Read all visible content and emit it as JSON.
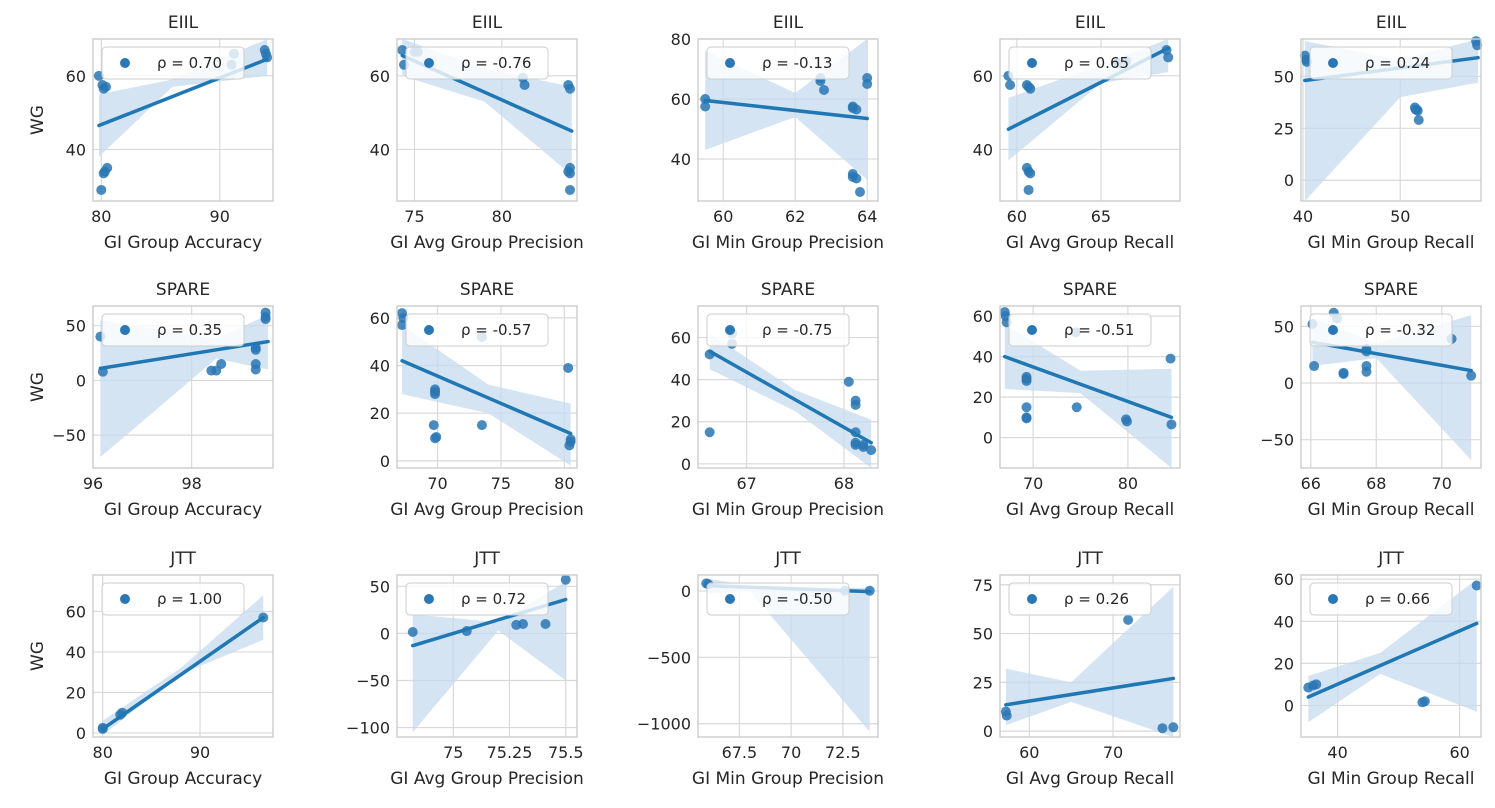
{
  "figure": {
    "ylabel": "WG",
    "colors": {
      "point": "#2a77b4",
      "line": "#1f77b4",
      "band": "#c6dbef",
      "grid": "#d9d9d9",
      "frame": "#cccccc"
    }
  },
  "chart_data": [
    {
      "type": "scatter",
      "title": "EIIL",
      "xlabel": "GI Group Accuracy",
      "ylabel": "WG",
      "rho": "ρ = 0.70",
      "xlim": [
        79.3,
        94.5
      ],
      "ylim": [
        26,
        70
      ],
      "xticks": [
        80,
        90
      ],
      "yticks": [
        40,
        60
      ],
      "x": [
        79.8,
        80.1,
        80.4,
        80.2,
        80.5,
        80.3,
        80.2,
        80.0,
        91.2,
        91.0,
        93.8,
        93.9,
        94.0
      ],
      "y": [
        60,
        57.5,
        57,
        56.5,
        35,
        34,
        33.5,
        29,
        66,
        63,
        67,
        66,
        65
      ],
      "fit": [
        [
          79.8,
          46.5
        ],
        [
          94,
          64.5
        ]
      ],
      "band_lo": [
        [
          79.8,
          38
        ],
        [
          86,
          57
        ],
        [
          94,
          60
        ]
      ],
      "band_hi": [
        [
          79.8,
          55
        ],
        [
          86,
          59
        ],
        [
          94,
          70
        ]
      ]
    },
    {
      "type": "scatter",
      "title": "EIIL",
      "xlabel": "GI Avg Group Precision",
      "ylabel": "",
      "rho": "ρ = -0.76",
      "xlim": [
        74,
        84.3
      ],
      "ylim": [
        26,
        70
      ],
      "xticks": [
        75,
        80
      ],
      "yticks": [
        40,
        60
      ],
      "x": [
        74.3,
        74.4,
        75.0,
        75.2,
        81.2,
        81.3,
        83.8,
        83.9,
        83.9,
        83.8,
        83.9,
        83.9
      ],
      "y": [
        67,
        63,
        66.5,
        66.5,
        59.5,
        57.5,
        57.5,
        56.5,
        35,
        34,
        33.5,
        29
      ],
      "fit": [
        [
          74.3,
          65.5
        ],
        [
          84,
          45
        ]
      ],
      "band_lo": [
        [
          74.3,
          60
        ],
        [
          79,
          53
        ],
        [
          84,
          33
        ]
      ],
      "band_hi": [
        [
          74.3,
          70
        ],
        [
          79,
          62
        ],
        [
          84,
          57
        ]
      ]
    },
    {
      "type": "scatter",
      "title": "EIIL",
      "xlabel": "GI Min Group Precision",
      "ylabel": "",
      "rho": "ρ = -0.13",
      "xlim": [
        59.3,
        64.3
      ],
      "ylim": [
        26,
        80
      ],
      "xticks": [
        60,
        62,
        64
      ],
      "yticks": [
        40,
        60,
        80
      ],
      "x": [
        59.5,
        59.5,
        62.7,
        62.7,
        62.8,
        63.6,
        63.6,
        63.7,
        63.6,
        63.6,
        63.7,
        63.8,
        64.0,
        64.0
      ],
      "y": [
        60,
        57.5,
        67,
        66,
        63,
        57.5,
        57,
        56.5,
        35,
        34,
        33.5,
        29,
        67,
        65
      ],
      "fit": [
        [
          59.5,
          59.5
        ],
        [
          64,
          53.5
        ]
      ],
      "band_lo": [
        [
          59.5,
          43
        ],
        [
          62,
          54
        ],
        [
          64,
          33
        ]
      ],
      "band_hi": [
        [
          59.5,
          76
        ],
        [
          62,
          62
        ],
        [
          64,
          80
        ]
      ]
    },
    {
      "type": "scatter",
      "title": "EIIL",
      "xlabel": "GI Avg Group Recall",
      "ylabel": "",
      "rho": "ρ = 0.65",
      "xlim": [
        59,
        69.7
      ],
      "ylim": [
        26,
        70
      ],
      "xticks": [
        60,
        65
      ],
      "yticks": [
        40,
        60
      ],
      "x": [
        59.5,
        59.6,
        60.6,
        60.7,
        60.8,
        60.6,
        60.7,
        60.8,
        60.7,
        66.0,
        66.5,
        68.9,
        69.0
      ],
      "y": [
        60,
        57.5,
        57.5,
        57,
        56.5,
        35,
        34,
        33.5,
        29,
        63.5,
        64,
        67,
        65
      ],
      "fit": [
        [
          59.5,
          45.5
        ],
        [
          69,
          67.5
        ]
      ],
      "band_lo": [
        [
          59.5,
          37
        ],
        [
          65,
          58
        ],
        [
          69,
          61
        ]
      ],
      "band_hi": [
        [
          59.5,
          54
        ],
        [
          65,
          63
        ],
        [
          69,
          70
        ]
      ]
    },
    {
      "type": "scatter",
      "title": "EIIL",
      "xlabel": "GI Min Group Recall",
      "ylabel": "",
      "rho": "ρ = 0.24",
      "xlim": [
        39.8,
        58.3
      ],
      "ylim": [
        -10,
        68
      ],
      "xticks": [
        40,
        50
      ],
      "yticks": [
        0,
        25,
        50
      ],
      "x": [
        40.2,
        40.3,
        40.4,
        51.5,
        51.6,
        51.8,
        51.9,
        51.7,
        57.8,
        57.9
      ],
      "y": [
        60,
        58,
        57,
        35,
        34,
        33.5,
        29,
        34,
        67,
        65
      ],
      "fit": [
        [
          40.2,
          48
        ],
        [
          58,
          59
        ]
      ],
      "band_lo": [
        [
          40.2,
          -10
        ],
        [
          50,
          40
        ],
        [
          58,
          47
        ]
      ],
      "band_hi": [
        [
          40.2,
          67
        ],
        [
          50,
          58
        ],
        [
          58,
          68
        ]
      ]
    },
    {
      "type": "scatter",
      "title": "SPARE",
      "xlabel": "GI Group Accuracy",
      "ylabel": "WG",
      "rho": "ρ = 0.35",
      "xlim": [
        96,
        99.65
      ],
      "ylim": [
        -80,
        68
      ],
      "xticks": [
        96,
        98
      ],
      "yticks": [
        -50,
        0,
        50
      ],
      "x": [
        96.15,
        96.2,
        98.4,
        98.5,
        98.6,
        99.3,
        99.3,
        99.3,
        99.3,
        99.5,
        99.5,
        99.5
      ],
      "y": [
        40,
        8,
        9,
        9,
        15,
        10,
        15,
        30,
        28,
        62,
        58,
        56
      ],
      "fit": [
        [
          96.15,
          11
        ],
        [
          99.55,
          35.5
        ]
      ],
      "band_lo": [
        [
          96.15,
          -70
        ],
        [
          98.5,
          20
        ],
        [
          99.55,
          10
        ]
      ],
      "band_hi": [
        [
          96.15,
          55
        ],
        [
          98.5,
          38
        ],
        [
          99.55,
          60
        ]
      ]
    },
    {
      "type": "scatter",
      "title": "SPARE",
      "xlabel": "GI Avg Group Precision",
      "ylabel": "",
      "rho": "ρ = -0.57",
      "xlim": [
        66.8,
        81
      ],
      "ylim": [
        -3,
        65
      ],
      "xticks": [
        70,
        75,
        80
      ],
      "yticks": [
        0,
        20,
        40,
        60
      ],
      "x": [
        67.2,
        67.3,
        67.2,
        69.8,
        69.8,
        69.8,
        69.7,
        69.9,
        69.8,
        73.5,
        73.5,
        80.3,
        80.5,
        80.5,
        80.4
      ],
      "y": [
        62,
        60,
        57,
        30,
        29,
        28,
        15,
        10,
        9.5,
        52,
        15,
        39,
        9,
        8,
        6.5
      ],
      "fit": [
        [
          67.2,
          42
        ],
        [
          80.5,
          11.5
        ]
      ],
      "band_lo": [
        [
          67.2,
          28
        ],
        [
          74,
          20
        ],
        [
          80.5,
          -2
        ]
      ],
      "band_hi": [
        [
          67.2,
          57
        ],
        [
          74,
          32
        ],
        [
          80.5,
          24
        ]
      ]
    },
    {
      "type": "scatter",
      "title": "SPARE",
      "xlabel": "GI Min Group Precision",
      "ylabel": "",
      "rho": "ρ = -0.75",
      "xlim": [
        66.5,
        68.35
      ],
      "ylim": [
        -2,
        75
      ],
      "xticks": [
        67,
        68
      ],
      "yticks": [
        0,
        20,
        40,
        60
      ],
      "x": [
        66.62,
        66.62,
        66.85,
        66.85,
        68.05,
        68.12,
        68.12,
        68.12,
        68.12,
        68.12,
        68.2,
        68.2,
        68.28
      ],
      "y": [
        52,
        15,
        62,
        57,
        39,
        30,
        28,
        15,
        10,
        9,
        9,
        8,
        6.5
      ],
      "fit": [
        [
          66.62,
          53.5
        ],
        [
          68.28,
          10
        ]
      ],
      "band_lo": [
        [
          66.62,
          45
        ],
        [
          67.5,
          25
        ],
        [
          68.28,
          -2
        ]
      ],
      "band_hi": [
        [
          66.62,
          62
        ],
        [
          67.5,
          35
        ],
        [
          68.28,
          21
        ]
      ]
    },
    {
      "type": "scatter",
      "title": "SPARE",
      "xlabel": "GI Avg Group Recall",
      "ylabel": "",
      "rho": "ρ = -0.51",
      "xlim": [
        66.5,
        85.5
      ],
      "ylim": [
        -15,
        65
      ],
      "xticks": [
        70,
        80
      ],
      "yticks": [
        0,
        20,
        40,
        60
      ],
      "x": [
        67.0,
        67.1,
        67.2,
        69.3,
        69.3,
        69.3,
        69.3,
        69.3,
        69.3,
        74.5,
        74.6,
        79.8,
        79.9,
        84.5,
        84.6
      ],
      "y": [
        62,
        60,
        57,
        30,
        29,
        28,
        15,
        10,
        9.5,
        52,
        15,
        9,
        8,
        39,
        6.5
      ],
      "fit": [
        [
          67.0,
          40
        ],
        [
          84.6,
          10
        ]
      ],
      "band_lo": [
        [
          67.0,
          24
        ],
        [
          75,
          22
        ],
        [
          84.6,
          -15
        ]
      ],
      "band_hi": [
        [
          67.0,
          56
        ],
        [
          75,
          33
        ],
        [
          84.6,
          34
        ]
      ]
    },
    {
      "type": "scatter",
      "title": "SPARE",
      "xlabel": "GI Min Group Recall",
      "ylabel": "",
      "rho": "ρ = -0.32",
      "xlim": [
        65.7,
        71.2
      ],
      "ylim": [
        -75,
        68
      ],
      "xticks": [
        66,
        68,
        70
      ],
      "yticks": [
        -50,
        0,
        50
      ],
      "x": [
        66.05,
        66.1,
        66.7,
        66.8,
        67.0,
        67.0,
        67.7,
        67.7,
        67.7,
        67.7,
        70.3,
        70.9
      ],
      "y": [
        52,
        15,
        62,
        57,
        9,
        8,
        30,
        28,
        15,
        10,
        39,
        6.5
      ],
      "fit": [
        [
          66.05,
          36
        ],
        [
          70.9,
          11
        ]
      ],
      "band_lo": [
        [
          66.05,
          15
        ],
        [
          68,
          22
        ],
        [
          70.9,
          -68
        ]
      ],
      "band_hi": [
        [
          66.05,
          58
        ],
        [
          68,
          35
        ],
        [
          70.9,
          60
        ]
      ]
    },
    {
      "type": "scatter",
      "title": "JTT",
      "xlabel": "GI Group Accuracy",
      "ylabel": "WG",
      "rho": "ρ = 1.00",
      "xlim": [
        79,
        97.5
      ],
      "ylim": [
        -2,
        78
      ],
      "xticks": [
        80,
        90
      ],
      "yticks": [
        0,
        20,
        40,
        60
      ],
      "x": [
        80,
        80,
        81.8,
        82,
        96.5
      ],
      "y": [
        2,
        2.5,
        9,
        10,
        57
      ],
      "fit": [
        [
          80,
          2
        ],
        [
          96.5,
          57
        ]
      ],
      "band_lo": [
        [
          80,
          -1
        ],
        [
          88,
          29
        ],
        [
          96.5,
          46
        ]
      ],
      "band_hi": [
        [
          80,
          6
        ],
        [
          88,
          32
        ],
        [
          96.5,
          68
        ]
      ]
    },
    {
      "type": "scatter",
      "title": "JTT",
      "xlabel": "GI Avg Group Precision",
      "ylabel": "",
      "rho": "ρ = 0.72",
      "xlim": [
        74.75,
        75.55
      ],
      "ylim": [
        -110,
        62
      ],
      "xticks": [
        75.0,
        75.25,
        75.5
      ],
      "yticks": [
        -100,
        -50,
        0,
        50
      ],
      "x": [
        74.82,
        75.06,
        75.28,
        75.31,
        75.41,
        75.5
      ],
      "y": [
        1.5,
        2.5,
        9,
        10,
        10,
        57
      ],
      "fit": [
        [
          74.82,
          -13
        ],
        [
          75.5,
          36
        ]
      ],
      "band_lo": [
        [
          74.82,
          -105
        ],
        [
          75.2,
          3
        ],
        [
          75.5,
          -50
        ]
      ],
      "band_hi": [
        [
          74.82,
          20
        ],
        [
          75.2,
          12
        ],
        [
          75.5,
          55
        ]
      ]
    },
    {
      "type": "scatter",
      "title": "JTT",
      "xlabel": "GI Min Group Precision",
      "ylabel": "",
      "rho": "ρ = -0.50",
      "xlim": [
        65.5,
        74.2
      ],
      "ylim": [
        -1100,
        120
      ],
      "xticks": [
        67.5,
        70.0,
        72.5
      ],
      "yticks": [
        -1000,
        -500,
        0
      ],
      "x": [
        65.9,
        66.0,
        72.6,
        73.8
      ],
      "y": [
        57,
        50,
        2,
        1
      ],
      "fit": [
        [
          65.9,
          40
        ],
        [
          73.8,
          -5
        ]
      ],
      "band_lo": [
        [
          65.9,
          -20
        ],
        [
          68,
          0
        ],
        [
          73.8,
          -1060
        ]
      ],
      "band_hi": [
        [
          65.9,
          95
        ],
        [
          68,
          40
        ],
        [
          73.8,
          20
        ]
      ]
    },
    {
      "type": "scatter",
      "title": "JTT",
      "xlabel": "GI Avg Group Recall",
      "ylabel": "",
      "rho": "ρ = 0.26",
      "xlim": [
        56.5,
        78
      ],
      "ylim": [
        -3,
        80
      ],
      "xticks": [
        60,
        70
      ],
      "yticks": [
        0,
        25,
        50,
        75
      ],
      "x": [
        57.2,
        57.3,
        71.8,
        75.9,
        77.2
      ],
      "y": [
        10,
        8,
        57,
        1.5,
        2
      ],
      "fit": [
        [
          57.2,
          13.5
        ],
        [
          77.2,
          27
        ]
      ],
      "band_lo": [
        [
          57.2,
          3
        ],
        [
          65,
          15
        ],
        [
          77.2,
          -3
        ]
      ],
      "band_hi": [
        [
          57.2,
          32
        ],
        [
          65,
          25
        ],
        [
          77.2,
          74
        ]
      ]
    },
    {
      "type": "scatter",
      "title": "JTT",
      "xlabel": "GI Min Group Recall",
      "ylabel": "",
      "rho": "ρ = 0.66",
      "xlim": [
        34,
        63.5
      ],
      "ylim": [
        -15,
        62
      ],
      "xticks": [
        40,
        60
      ],
      "yticks": [
        0,
        20,
        40,
        60
      ],
      "x": [
        35.2,
        36.0,
        36.5,
        53.9,
        54.3,
        62.8
      ],
      "y": [
        8.5,
        9.5,
        10,
        1.5,
        2,
        57
      ],
      "fit": [
        [
          35.2,
          4
        ],
        [
          62.8,
          39
        ]
      ],
      "band_lo": [
        [
          35.2,
          -8
        ],
        [
          47,
          15
        ],
        [
          62.8,
          -3
        ]
      ],
      "band_hi": [
        [
          35.2,
          14
        ],
        [
          47,
          25
        ],
        [
          62.8,
          60
        ]
      ]
    }
  ]
}
